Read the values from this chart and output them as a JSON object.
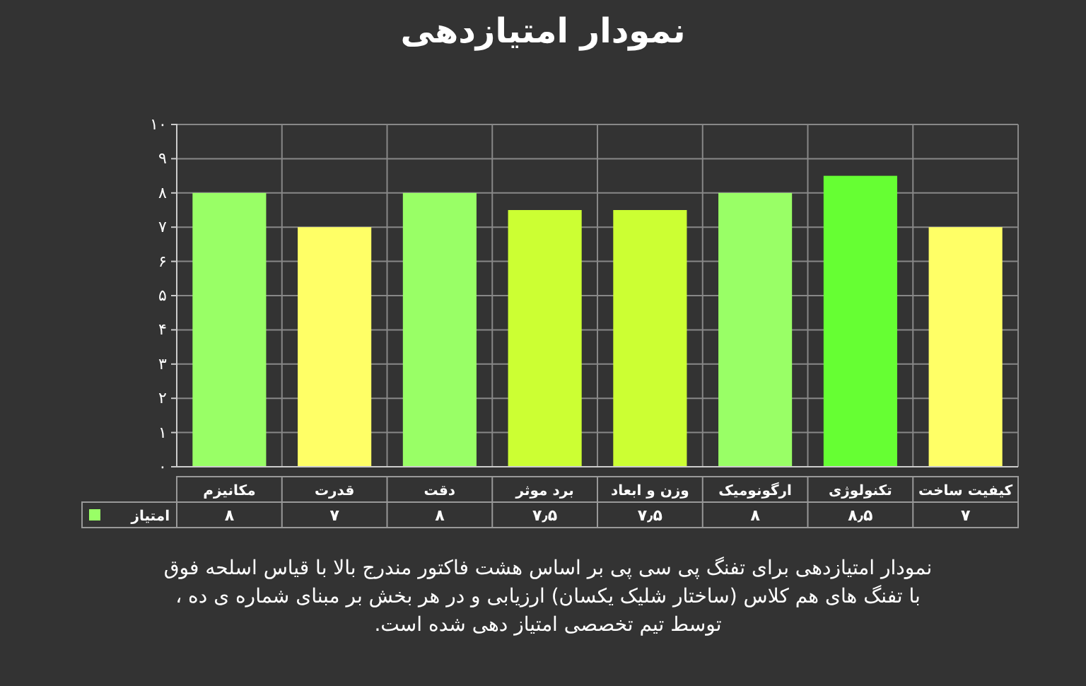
{
  "chart_data": {
    "type": "bar",
    "title": "نمودار امتیازدهی",
    "categories": [
      "مکانیزم",
      "قدرت",
      "دقت",
      "برد موثر",
      "وزن و ابعاد",
      "ارگونومیک",
      "تکنولوژی",
      "کیفیت ساخت"
    ],
    "series": [
      {
        "name": "امتیاز",
        "color": "#99ff66",
        "colors": [
          "#99ff66",
          "#ffff66",
          "#99ff66",
          "#ccff33",
          "#ccff33",
          "#99ff66",
          "#66ff33",
          "#ffff66"
        ],
        "values": [
          8,
          7,
          8,
          7.5,
          7.5,
          8,
          8.5,
          7
        ],
        "value_labels": [
          "۸",
          "۷",
          "۸",
          "۷٫۵",
          "۷٫۵",
          "۸",
          "۸٫۵",
          "۷"
        ]
      }
    ],
    "ylim": [
      0,
      10
    ],
    "yticks": [
      {
        "value": 0,
        "label": "۰"
      },
      {
        "value": 1,
        "label": "۱"
      },
      {
        "value": 2,
        "label": "۲"
      },
      {
        "value": 3,
        "label": "۳"
      },
      {
        "value": 4,
        "label": "۴"
      },
      {
        "value": 5,
        "label": "۵"
      },
      {
        "value": 6,
        "label": "۶"
      },
      {
        "value": 7,
        "label": "۷"
      },
      {
        "value": 8,
        "label": "۸"
      },
      {
        "value": 9,
        "label": "۹"
      },
      {
        "value": 10,
        "label": "۱۰"
      }
    ],
    "grid": true,
    "legend": "bottom left",
    "annotations": [
      "نمودار امتیازدهی برای تفنگ پی سی پی بر اساس هشت فاکتور مندرج بالا با قیاس اسلحه فوق با تفنگ های هم کلاس (ساختار شلیک یکسان) ارزیابی و در هر بخش بر مبنای شماره ی ده ، توسط تیم تخصصی امتیاز دهی شده است."
    ]
  }
}
